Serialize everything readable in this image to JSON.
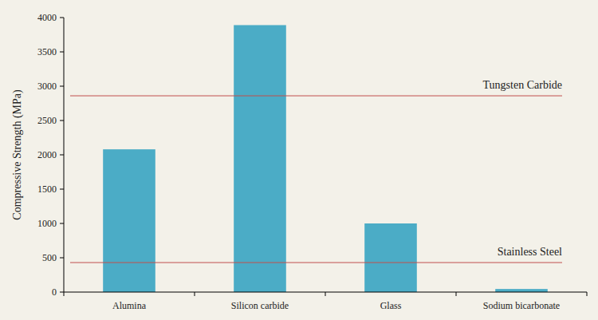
{
  "chart_data": {
    "type": "bar",
    "y_label": "Compressive Strength (MPa)",
    "categories": [
      "Alumina",
      "Silicon carbide",
      "Glass",
      "Sodium bicarbonate"
    ],
    "values": [
      2080,
      3890,
      1000,
      45
    ],
    "color": "#4bacc6",
    "ylim": [
      0,
      4000
    ],
    "yticks": [
      0,
      500,
      1000,
      1500,
      2000,
      2500,
      3000,
      3500,
      4000
    ],
    "grid": false,
    "reference_lines": [
      {
        "label": "Tungsten Carbide",
        "value": 2860,
        "color": "#c0504d"
      },
      {
        "label": "Stainless Steel",
        "value": 430,
        "color": "#c0504d"
      }
    ]
  }
}
